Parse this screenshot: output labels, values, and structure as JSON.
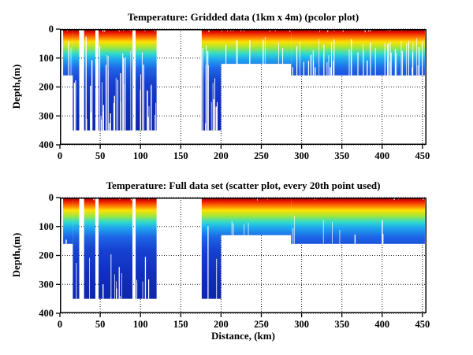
{
  "figure": {
    "background": "#ffffff",
    "axis_color": "#000000",
    "grid_style": "dotted"
  },
  "shared": {
    "xlabel": "Distance, (km)",
    "ylabel": "Depth,(m)"
  },
  "chart_data": [
    {
      "type": "heatmap",
      "title": "Temperature: Gridded data (1km x 4m) (pcolor plot)",
      "xlabel": "",
      "ylabel": "Depth,(m)",
      "xlim": [
        0,
        455
      ],
      "ylim": [
        400,
        0
      ],
      "xticks": [
        0,
        50,
        100,
        150,
        200,
        250,
        300,
        350,
        400,
        450
      ],
      "yticks": [
        0,
        100,
        200,
        300,
        400
      ],
      "grid": "dotted",
      "colormap": "jet",
      "colormap_stops": [
        [
          0.0,
          "#8c0000"
        ],
        [
          0.03,
          "#e81400"
        ],
        [
          0.07,
          "#ff7300"
        ],
        [
          0.11,
          "#ffe100"
        ],
        [
          0.16,
          "#a0e63c"
        ],
        [
          0.21,
          "#32dcc8"
        ],
        [
          0.26,
          "#1fa8f0"
        ],
        [
          0.34,
          "#1e66e6"
        ],
        [
          0.45,
          "#1742d2"
        ],
        [
          0.66,
          "#102ebe"
        ],
        [
          1.0,
          "#0b22a0"
        ]
      ],
      "seed": 7,
      "speckle_color": "#6e0000",
      "speckle_density": 0.55,
      "notch_density": 0.12,
      "segments": [
        {
          "x0": 4,
          "x1": 16,
          "bottom": 160,
          "stripes": 0.15,
          "stripe_top": [
            20,
            120
          ]
        },
        {
          "x0": 16,
          "x1": 24,
          "bottom": 350,
          "stripes": 0.3,
          "stripe_top": [
            40,
            300
          ]
        },
        {
          "x0": 30,
          "x1": 44,
          "bottom": 350,
          "stripes": 0.35,
          "stripe_top": [
            20,
            320
          ]
        },
        {
          "x0": 48,
          "x1": 90,
          "bottom": 350,
          "stripes": 0.55,
          "stripe_top": [
            30,
            330
          ]
        },
        {
          "x0": 94,
          "x1": 120,
          "bottom": 350,
          "stripes": 0.5,
          "stripe_top": [
            25,
            330
          ]
        },
        {
          "x0": 176,
          "x1": 200,
          "bottom": 350,
          "stripes": 0.55,
          "stripe_top": [
            20,
            330
          ]
        },
        {
          "x0": 200,
          "x1": 287,
          "bottom": 120,
          "stripes": 0.09,
          "stripe_top": [
            15,
            70
          ]
        },
        {
          "x0": 287,
          "x1": 453,
          "bottom": 160,
          "stripes": 0.3,
          "stripe_top": [
            30,
            140
          ]
        }
      ]
    },
    {
      "type": "scatter",
      "title": "Temperature: Full data set (scatter plot, every 20th point used)",
      "xlabel": "Distance, (km)",
      "ylabel": "Depth,(m)",
      "xlim": [
        0,
        455
      ],
      "ylim": [
        400,
        0
      ],
      "xticks": [
        0,
        50,
        100,
        150,
        200,
        250,
        300,
        350,
        400,
        450
      ],
      "yticks": [
        0,
        100,
        200,
        300,
        400
      ],
      "grid": "dotted",
      "colormap": "jet",
      "colormap_stops": [
        [
          0.0,
          "#8c0000"
        ],
        [
          0.03,
          "#e81400"
        ],
        [
          0.07,
          "#ff7300"
        ],
        [
          0.11,
          "#ffe100"
        ],
        [
          0.16,
          "#a0e63c"
        ],
        [
          0.21,
          "#32dcc8"
        ],
        [
          0.26,
          "#1fa8f0"
        ],
        [
          0.34,
          "#1e66e6"
        ],
        [
          0.45,
          "#1742d2"
        ],
        [
          0.66,
          "#102ebe"
        ],
        [
          1.0,
          "#0b22a0"
        ]
      ],
      "seed": 13,
      "speckle_color": "#7a0000",
      "speckle_density": 0.7,
      "notch_density": 0.04,
      "segments": [
        {
          "x0": 4,
          "x1": 16,
          "bottom": 160,
          "stripes": 0.05,
          "stripe_top": [
            100,
            150
          ]
        },
        {
          "x0": 16,
          "x1": 24,
          "bottom": 350,
          "stripes": 0.08,
          "stripe_top": [
            150,
            330
          ]
        },
        {
          "x0": 30,
          "x1": 44,
          "bottom": 350,
          "stripes": 0.1,
          "stripe_top": [
            200,
            340
          ]
        },
        {
          "x0": 48,
          "x1": 90,
          "bottom": 350,
          "stripes": 0.22,
          "stripe_top": [
            180,
            345
          ]
        },
        {
          "x0": 94,
          "x1": 120,
          "bottom": 350,
          "stripes": 0.18,
          "stripe_top": [
            200,
            345
          ]
        },
        {
          "x0": 176,
          "x1": 200,
          "bottom": 350,
          "stripes": 0.1,
          "stripe_top": [
            80,
            250
          ]
        },
        {
          "x0": 200,
          "x1": 287,
          "bottom": 130,
          "stripes": 0.05,
          "stripe_top": [
            40,
            110
          ]
        },
        {
          "x0": 287,
          "x1": 453,
          "bottom": 160,
          "stripes": 0.05,
          "stripe_top": [
            60,
            150
          ]
        }
      ]
    }
  ]
}
